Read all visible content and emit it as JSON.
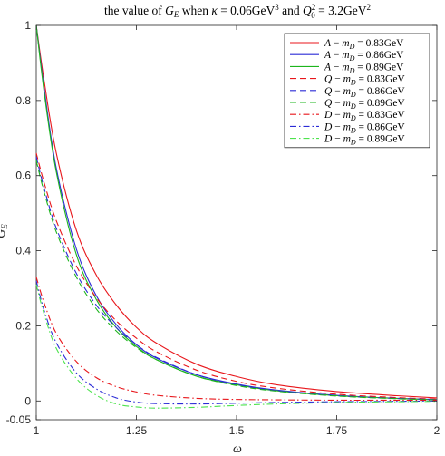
{
  "chart_data": {
    "type": "line",
    "title": "the value of G_E when κ = 0.06GeV³ and Q₀² = 3.2GeV²",
    "xlabel": "ω",
    "ylabel": "G_E",
    "xlim": [
      1,
      2
    ],
    "ylim": [
      -0.05,
      1
    ],
    "xticks": [
      "1",
      "1.25",
      "1.5",
      "1.75",
      "2"
    ],
    "yticks": [
      "-0.05",
      "0",
      "0.2",
      "0.4",
      "0.6",
      "0.8",
      "1"
    ],
    "legend_position": "top-right",
    "grid": false,
    "x": [
      1.0,
      1.02,
      1.05,
      1.1,
      1.15,
      1.2,
      1.25,
      1.3,
      1.4,
      1.5,
      1.6,
      1.75,
      1.9,
      2.0
    ],
    "series": [
      {
        "name": "A − m_D = 0.83GeV",
        "color": "#e8161b",
        "dash": "solid",
        "values": [
          1.0,
          0.85,
          0.66,
          0.455,
          0.335,
          0.255,
          0.196,
          0.154,
          0.098,
          0.065,
          0.043,
          0.025,
          0.014,
          0.008
        ]
      },
      {
        "name": "A − m_D = 0.86GeV",
        "color": "#2b2bd6",
        "dash": "solid",
        "values": [
          1.0,
          0.83,
          0.62,
          0.405,
          0.28,
          0.203,
          0.15,
          0.114,
          0.07,
          0.045,
          0.029,
          0.015,
          0.007,
          0.004
        ]
      },
      {
        "name": "A − m_D = 0.89GeV",
        "color": "#1db51d",
        "dash": "solid",
        "values": [
          1.0,
          0.82,
          0.61,
          0.39,
          0.27,
          0.195,
          0.145,
          0.11,
          0.066,
          0.043,
          0.027,
          0.014,
          0.007,
          0.003
        ]
      },
      {
        "name": "Q − m_D = 0.83GeV",
        "color": "#e8161b",
        "dash": "dash",
        "values": [
          0.66,
          0.58,
          0.48,
          0.36,
          0.275,
          0.213,
          0.167,
          0.131,
          0.082,
          0.052,
          0.034,
          0.018,
          0.009,
          0.005
        ]
      },
      {
        "name": "Q − m_D = 0.86GeV",
        "color": "#2b2bd6",
        "dash": "dash",
        "values": [
          0.65,
          0.565,
          0.46,
          0.34,
          0.255,
          0.195,
          0.15,
          0.116,
          0.07,
          0.044,
          0.028,
          0.014,
          0.007,
          0.004
        ]
      },
      {
        "name": "Q − m_D = 0.89GeV",
        "color": "#1db51d",
        "dash": "dash",
        "values": [
          0.64,
          0.555,
          0.45,
          0.33,
          0.245,
          0.186,
          0.142,
          0.11,
          0.066,
          0.041,
          0.026,
          0.013,
          0.006,
          0.003
        ]
      },
      {
        "name": "D − m_D = 0.83GeV",
        "color": "#e8161b",
        "dash": "dashdot",
        "values": [
          0.33,
          0.26,
          0.18,
          0.105,
          0.062,
          0.038,
          0.024,
          0.015,
          0.007,
          0.004,
          0.003,
          0.002,
          0.002,
          0.002
        ]
      },
      {
        "name": "D − m_D = 0.86GeV",
        "color": "#2b2bd6",
        "dash": "dashdot",
        "values": [
          0.32,
          0.24,
          0.155,
          0.075,
          0.032,
          0.008,
          -0.003,
          -0.007,
          -0.008,
          -0.006,
          -0.004,
          -0.002,
          -0.001,
          0.0
        ]
      },
      {
        "name": "D − m_D = 0.89GeV",
        "color": "#4de34d",
        "dash": "dashdot",
        "values": [
          0.31,
          0.23,
          0.14,
          0.06,
          0.015,
          -0.008,
          -0.016,
          -0.019,
          -0.017,
          -0.012,
          -0.008,
          -0.004,
          -0.002,
          -0.001
        ]
      }
    ]
  }
}
